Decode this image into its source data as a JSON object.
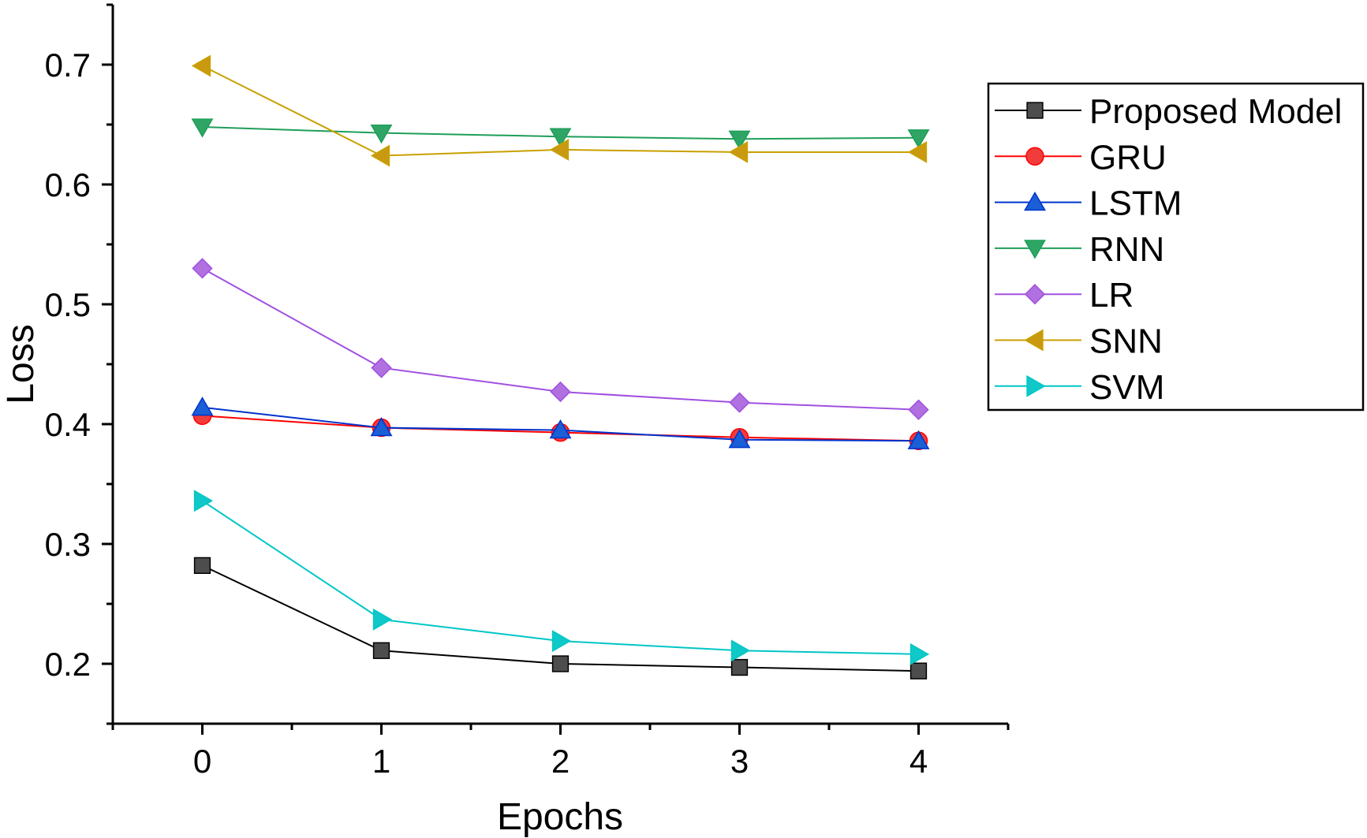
{
  "chart_data": {
    "type": "line",
    "title": "",
    "xlabel": "Epochs",
    "ylabel": "Loss",
    "x": [
      0,
      1,
      2,
      3,
      4
    ],
    "xlim": [
      -0.5,
      4.5
    ],
    "ylim": [
      0.15,
      0.75
    ],
    "xticks": [
      "0",
      "1",
      "2",
      "3",
      "4"
    ],
    "yticks": [
      "0.2",
      "0.3",
      "0.4",
      "0.5",
      "0.6",
      "0.7"
    ],
    "ytick_values": [
      0.2,
      0.3,
      0.4,
      0.5,
      0.6,
      0.7
    ],
    "grid": false,
    "legend_position": "top-right",
    "series": [
      {
        "name": "Proposed Model",
        "color": "#000000",
        "fill": "#4d4d4d",
        "marker": "square",
        "values": [
          0.282,
          0.211,
          0.2,
          0.197,
          0.194
        ]
      },
      {
        "name": "GRU",
        "color": "#ff0000",
        "fill": "#f23c3c",
        "marker": "circle",
        "values": [
          0.407,
          0.397,
          0.393,
          0.389,
          0.386
        ]
      },
      {
        "name": "LSTM",
        "color": "#0033cc",
        "fill": "#1a5fd6",
        "marker": "triangle-up",
        "values": [
          0.414,
          0.397,
          0.395,
          0.387,
          0.386
        ]
      },
      {
        "name": "RNN",
        "color": "#1f9e5a",
        "fill": "#2fa565",
        "marker": "triangle-down",
        "values": [
          0.648,
          0.643,
          0.64,
          0.638,
          0.639
        ]
      },
      {
        "name": "LR",
        "color": "#a050e0",
        "fill": "#b070e0",
        "marker": "diamond",
        "values": [
          0.53,
          0.447,
          0.427,
          0.418,
          0.412
        ]
      },
      {
        "name": "SNN",
        "color": "#c9a000",
        "fill": "#c99a10",
        "marker": "triangle-left",
        "values": [
          0.699,
          0.624,
          0.629,
          0.627,
          0.627
        ]
      },
      {
        "name": "SVM",
        "color": "#00c6c6",
        "fill": "#10c8c8",
        "marker": "triangle-right",
        "values": [
          0.336,
          0.237,
          0.219,
          0.211,
          0.208
        ]
      }
    ]
  }
}
